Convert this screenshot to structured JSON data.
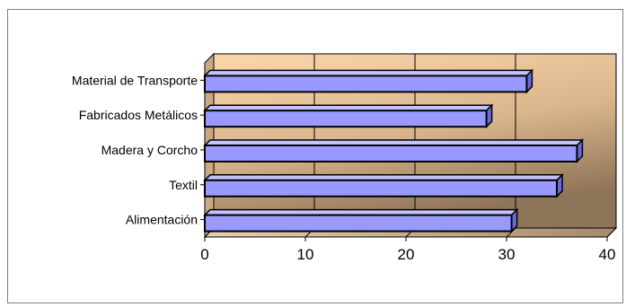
{
  "chart_data": {
    "type": "bar",
    "orientation": "horizontal",
    "categories": [
      "Material de Transporte",
      "Fabricados Metálicos",
      "Madera y Corcho",
      "Textil",
      "Alimentación"
    ],
    "values": [
      32,
      28,
      37,
      35,
      30.5
    ],
    "xlim": [
      0,
      40
    ],
    "xticks": [
      "0",
      "10",
      "20",
      "30",
      "40"
    ],
    "grid": true,
    "legend": "none",
    "colors": {
      "bar_front": "#9999ff",
      "bar_top": "#c2c2ff",
      "bar_side": "#6b6bd6",
      "wall_light": "#fcd7ab",
      "wall_dark": "#8e7458",
      "floor": "#c8b59a"
    }
  }
}
